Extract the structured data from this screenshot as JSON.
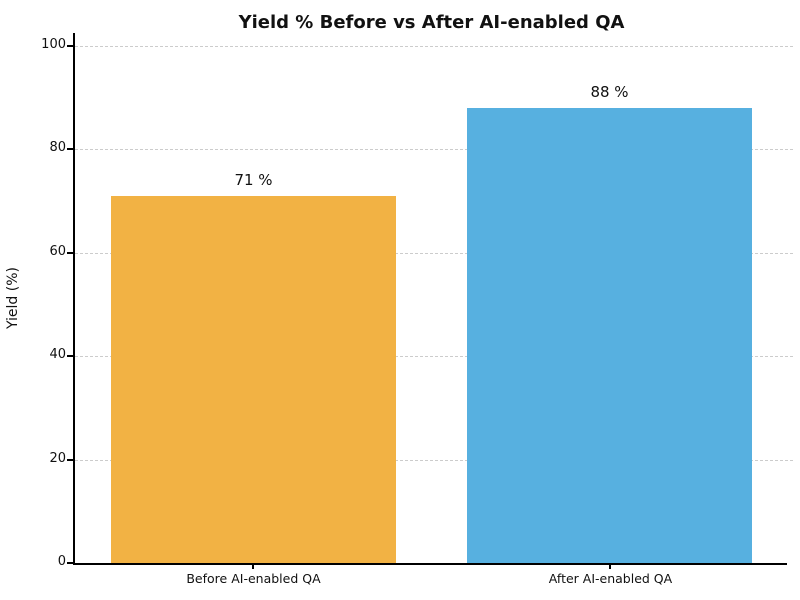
{
  "chart_data": {
    "type": "bar",
    "title": "Yield % Before vs After AI-enabled QA",
    "categories": [
      "Before AI-enabled QA",
      "After AI-enabled QA"
    ],
    "values": [
      71,
      88
    ],
    "value_labels": [
      "71 %",
      "88 %"
    ],
    "bar_colors": [
      "#f2b244",
      "#57b0e0"
    ],
    "xlabel": "",
    "ylabel": "Yield (%)",
    "yticks": [
      0,
      20,
      40,
      60,
      80,
      100
    ],
    "ylim": [
      0,
      100
    ],
    "grid": "horizontal-dashed",
    "legend": "none",
    "colors": {
      "grid": "#cccccc",
      "spine": "#000000",
      "text": "#111111",
      "background": "#ffffff"
    }
  }
}
